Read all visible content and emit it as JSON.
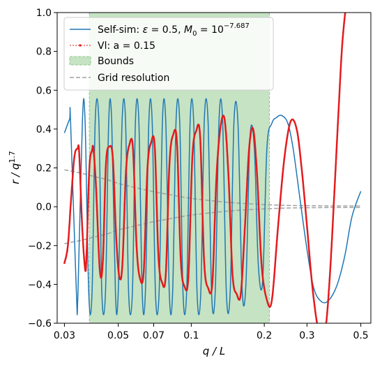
{
  "chart_data": {
    "type": "line",
    "xscale": "log",
    "xlim": [
      0.028,
      0.55
    ],
    "ylim": [
      -0.6,
      1.0
    ],
    "xlabel": "q / L",
    "ylabel": "r / q^1.7",
    "xticks": [
      {
        "value": 0.03,
        "label": "0.03"
      },
      {
        "value": 0.05,
        "label": "0.05"
      },
      {
        "value": 0.07,
        "label": "0.07"
      },
      {
        "value": 0.1,
        "label": "0.1"
      },
      {
        "value": 0.2,
        "label": "0.2"
      },
      {
        "value": 0.3,
        "label": "0.3"
      },
      {
        "value": 0.5,
        "label": "0.5"
      }
    ],
    "yticks": [
      {
        "value": 1.0,
        "label": "1.0"
      },
      {
        "value": 0.8,
        "label": "0.8"
      },
      {
        "value": 0.6,
        "label": "0.6"
      },
      {
        "value": 0.4,
        "label": "0.4"
      },
      {
        "value": 0.2,
        "label": "0.2"
      },
      {
        "value": 0.0,
        "label": "0.0"
      },
      {
        "value": -0.2,
        "label": "−0.2"
      },
      {
        "value": -0.4,
        "label": "−0.4"
      },
      {
        "value": -0.6,
        "label": "−0.6"
      }
    ],
    "bounds": {
      "x_min": 0.038,
      "x_max": 0.21,
      "color": "#c6e3c4",
      "edge": "#8fc98a"
    },
    "legend": {
      "position": "top-left",
      "entries": [
        {
          "key": "selfsim",
          "label": "Self-sim: ε = 0.5, M₀ = 10⁻⁷·⁶⁸⁷"
        },
        {
          "key": "vl",
          "label": "Vl: a = 0.15"
        },
        {
          "key": "bounds",
          "label": "Bounds"
        },
        {
          "key": "grid",
          "label": "Grid resolution"
        }
      ]
    },
    "series": [
      {
        "key": "selfsim",
        "name": "Self-sim: ε = 0.5, M₀ = 10⁻⁷·⁶⁸⁷",
        "color": "#1f77b4",
        "x": [
          0.03,
          0.0315,
          0.0318,
          0.0336,
          0.0341,
          0.0356,
          0.0365,
          0.0378,
          0.039,
          0.0402,
          0.0416,
          0.0428,
          0.0443,
          0.0457,
          0.047,
          0.0487,
          0.05,
          0.0519,
          0.0536,
          0.0552,
          0.0572,
          0.0589,
          0.0608,
          0.0628,
          0.0647,
          0.0669,
          0.069,
          0.0712,
          0.0737,
          0.0761,
          0.0785,
          0.0812,
          0.0838,
          0.0866,
          0.0896,
          0.0925,
          0.0957,
          0.099,
          0.1023,
          0.1057,
          0.1095,
          0.1132,
          0.1173,
          0.1213,
          0.1256,
          0.1302,
          0.1347,
          0.1396,
          0.1448,
          0.15,
          0.1558,
          0.162,
          0.168,
          0.1747,
          0.182,
          0.189,
          0.197,
          0.205,
          0.215,
          0.225,
          0.236,
          0.25,
          0.263,
          0.28,
          0.3,
          0.32,
          0.345,
          0.37,
          0.4,
          0.43,
          0.46,
          0.5
        ],
        "y": [
          0.38,
          0.45,
          0.44,
          -0.44,
          -0.45,
          0.45,
          0.44,
          -0.45,
          -0.44,
          0.45,
          0.44,
          -0.45,
          -0.44,
          0.45,
          0.44,
          -0.45,
          -0.44,
          0.45,
          0.44,
          -0.45,
          -0.44,
          0.45,
          0.44,
          -0.45,
          -0.44,
          0.45,
          0.44,
          -0.45,
          -0.44,
          0.45,
          0.44,
          -0.45,
          -0.44,
          0.45,
          0.44,
          -0.45,
          -0.44,
          0.45,
          0.44,
          -0.45,
          -0.44,
          0.45,
          0.44,
          -0.45,
          -0.43,
          0.45,
          0.44,
          -0.45,
          -0.43,
          0.44,
          0.43,
          -0.42,
          -0.4,
          0.36,
          0.3,
          -0.3,
          -0.38,
          0.3,
          0.43,
          0.46,
          0.47,
          0.43,
          0.3,
          0.05,
          -0.22,
          -0.42,
          -0.49,
          -0.48,
          -0.4,
          -0.25,
          -0.05,
          0.08
        ]
      },
      {
        "key": "vl",
        "name": "Vl: a = 0.15",
        "color": "#e31a1c",
        "x": [
          0.03,
          0.031,
          0.032,
          0.033,
          0.034,
          0.0345,
          0.0355,
          0.0365,
          0.037,
          0.038,
          0.039,
          0.0395,
          0.0405,
          0.042,
          0.0432,
          0.0445,
          0.046,
          0.0475,
          0.049,
          0.0505,
          0.052,
          0.0538,
          0.0556,
          0.0575,
          0.0595,
          0.0615,
          0.0637,
          0.066,
          0.0683,
          0.0707,
          0.0732,
          0.0758,
          0.0785,
          0.0813,
          0.0842,
          0.0873,
          0.0905,
          0.0938,
          0.0973,
          0.101,
          0.1048,
          0.1088,
          0.113,
          0.1175,
          0.1222,
          0.127,
          0.132,
          0.1372,
          0.1425,
          0.148,
          0.154,
          0.16,
          0.1665,
          0.1732,
          0.18,
          0.187,
          0.195,
          0.205,
          0.215,
          0.228,
          0.242,
          0.257,
          0.272,
          0.285,
          0.3,
          0.315,
          0.33,
          0.345,
          0.36,
          0.375,
          0.39,
          0.405,
          0.42,
          0.44
        ],
        "y": [
          -0.29,
          -0.2,
          0.05,
          0.26,
          0.3,
          0.28,
          -0.1,
          -0.32,
          -0.25,
          0.2,
          0.29,
          0.3,
          0.1,
          -0.33,
          -0.28,
          0.22,
          0.31,
          0.25,
          -0.15,
          -0.36,
          -0.3,
          0.18,
          0.32,
          0.3,
          -0.2,
          -0.37,
          -0.33,
          0.2,
          0.33,
          0.31,
          -0.25,
          -0.39,
          -0.35,
          0.22,
          0.37,
          0.33,
          -0.27,
          -0.41,
          -0.36,
          0.25,
          0.39,
          0.36,
          -0.28,
          -0.42,
          -0.39,
          0.15,
          0.41,
          0.45,
          0.15,
          -0.35,
          -0.45,
          -0.45,
          -0.1,
          0.3,
          0.4,
          0.15,
          -0.3,
          -0.48,
          -0.48,
          -0.1,
          0.25,
          0.44,
          0.4,
          0.2,
          -0.1,
          -0.4,
          -0.6,
          -0.7,
          -0.6,
          -0.3,
          0.1,
          0.5,
          0.85,
          1.1
        ]
      },
      {
        "key": "grid_upper",
        "name": "Grid resolution",
        "color": "#a0a0a0",
        "x": [
          0.03,
          0.033,
          0.036,
          0.04,
          0.045,
          0.05,
          0.056,
          0.063,
          0.07,
          0.08,
          0.09,
          0.1,
          0.115,
          0.13,
          0.15,
          0.175,
          0.2,
          0.23,
          0.27,
          0.32,
          0.38,
          0.45,
          0.5
        ],
        "y": [
          0.19,
          0.18,
          0.17,
          0.155,
          0.14,
          0.12,
          0.105,
          0.09,
          0.077,
          0.064,
          0.052,
          0.043,
          0.034,
          0.027,
          0.02,
          0.015,
          0.011,
          0.008,
          0.006,
          0.005,
          0.004,
          0.004,
          0.004
        ]
      },
      {
        "key": "grid_lower",
        "name": "",
        "color": "#a0a0a0",
        "x": [
          0.03,
          0.033,
          0.036,
          0.04,
          0.045,
          0.05,
          0.056,
          0.063,
          0.07,
          0.08,
          0.09,
          0.1,
          0.115,
          0.13,
          0.15,
          0.175,
          0.2,
          0.23,
          0.27,
          0.32,
          0.38,
          0.45,
          0.5
        ],
        "y": [
          -0.19,
          -0.18,
          -0.17,
          -0.155,
          -0.14,
          -0.12,
          -0.105,
          -0.09,
          -0.077,
          -0.064,
          -0.052,
          -0.043,
          -0.034,
          -0.027,
          -0.02,
          -0.015,
          -0.011,
          -0.008,
          -0.006,
          -0.005,
          -0.004,
          -0.004,
          -0.004
        ]
      }
    ]
  }
}
